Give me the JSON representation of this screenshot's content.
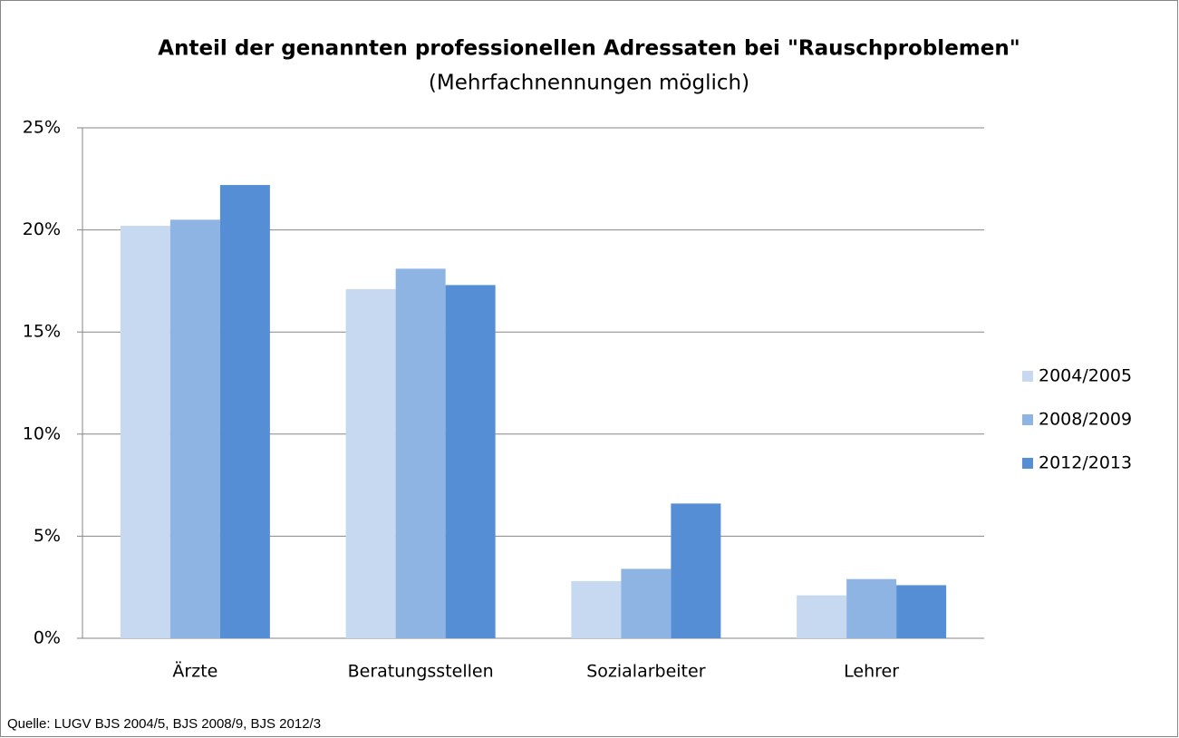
{
  "chart_data": {
    "type": "bar",
    "title": "Anteil der genannten professionellen Adressaten bei \"Rauschproblemen\"",
    "subtitle": "(Mehrfachnennungen möglich)",
    "source": "Quelle: LUGV BJS 2004/5, BJS 2008/9, BJS 2012/3",
    "categories": [
      "Ärzte",
      "Beratungsstellen",
      "Sozialarbeiter",
      "Lehrer"
    ],
    "series": [
      {
        "name": "2004/2005",
        "color": "#c6d9f1",
        "values": [
          20.2,
          17.1,
          2.8,
          2.1
        ]
      },
      {
        "name": "2008/2009",
        "color": "#8eb4e3",
        "values": [
          20.5,
          18.1,
          3.4,
          2.9
        ]
      },
      {
        "name": "2012/2013",
        "color": "#558ed5",
        "values": [
          22.2,
          17.3,
          6.6,
          2.6
        ]
      }
    ],
    "ylim": [
      0,
      25
    ],
    "yticks": [
      {
        "value": 0,
        "label": "0%"
      },
      {
        "value": 5,
        "label": "5%"
      },
      {
        "value": 10,
        "label": "10%"
      },
      {
        "value": 15,
        "label": "15%"
      },
      {
        "value": 20,
        "label": "20%"
      },
      {
        "value": 25,
        "label": "25%"
      }
    ],
    "grid": true,
    "legend": "right"
  }
}
